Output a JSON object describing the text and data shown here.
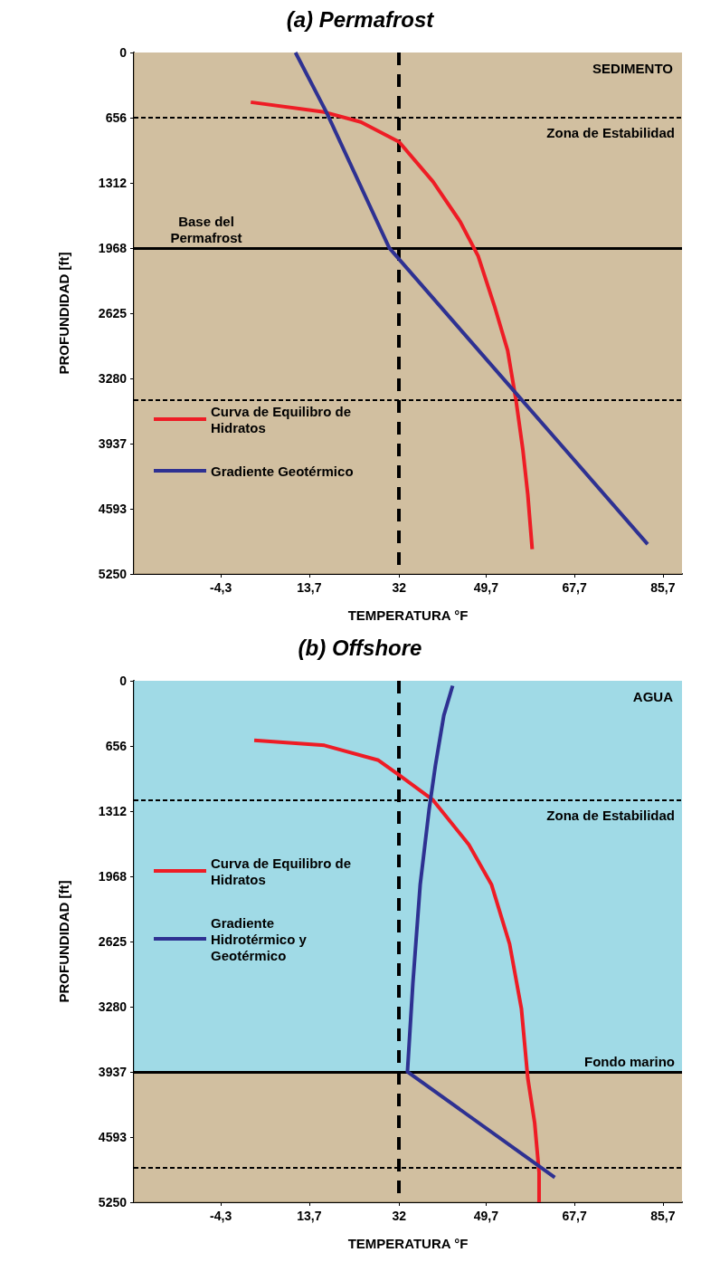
{
  "chart_data": [
    {
      "type": "line",
      "title": "(a) Permafrost",
      "xlabel": "TEMPERATURA °F",
      "ylabel": "PROFUNDIDAD [ft]",
      "xlim": [
        -22,
        89.6
      ],
      "ylim": [
        5250,
        0
      ],
      "xticks": [
        {
          "value": -4.3,
          "label": "-4,3"
        },
        {
          "value": 13.7,
          "label": "13,7"
        },
        32,
        {
          "value": 49.7,
          "label": "49,7"
        },
        {
          "value": 67.7,
          "label": "67,7"
        },
        {
          "value": 85.7,
          "label": "85,7"
        }
      ],
      "yticks": [
        0,
        656,
        1312,
        1968,
        2625,
        3280,
        3937,
        4593,
        5250
      ],
      "legend": "left",
      "tick_labels": "xy",
      "series": [
        {
          "name": "Curva de Equilibro de Hidratos",
          "color": "#ee1c25",
          "x": [
            1.8,
            16.8,
            24.2,
            32,
            38.9,
            44.4,
            48.1,
            51.4,
            54.1,
            55.8,
            57.2,
            58.2,
            59.1
          ],
          "values": [
            500,
            600,
            700,
            900,
            1300,
            1700,
            2050,
            2550,
            3000,
            3500,
            4000,
            4450,
            5000
          ]
        },
        {
          "name": "Gradiente Geotérmico",
          "color": "#2e3192",
          "x": [
            10.9,
            17.2,
            30.0,
            82.6
          ],
          "values": [
            0,
            600,
            1968,
            4950
          ]
        }
      ],
      "ref_lines": [
        {
          "axis": "y",
          "value": 1968,
          "label": "Base del Permafrost",
          "color": "#000000",
          "line_style": "solid"
        },
        {
          "axis": "x",
          "value": 32,
          "color": "#000000",
          "line_style": "dashed"
        },
        {
          "axis": "y",
          "value": 656,
          "label": "Zona de Estabilidad",
          "color": "#000000",
          "line_style": "dotted"
        },
        {
          "axis": "y",
          "value": 3500,
          "color": "#000000",
          "line_style": "dotted"
        }
      ],
      "bands": [
        {
          "axis": "y",
          "from": 0,
          "to": 5250,
          "label": "SEDIMENTO",
          "color": "#c9b48f"
        }
      ]
    },
    {
      "type": "line",
      "title": "(b) Offshore",
      "xlabel": "TEMPERATURA °F",
      "ylabel": "PROFUNDIDAD [ft]",
      "xlim": [
        -22,
        89.6
      ],
      "ylim": [
        5250,
        0
      ],
      "xticks": [
        {
          "value": -4.3,
          "label": "-4,3"
        },
        {
          "value": 13.7,
          "label": "13,7"
        },
        32,
        {
          "value": 49.7,
          "label": "49,7"
        },
        {
          "value": 67.7,
          "label": "67,7"
        },
        {
          "value": 85.7,
          "label": "85,7"
        }
      ],
      "yticks": [
        0,
        656,
        1312,
        1968,
        2625,
        3280,
        3937,
        4593,
        5250
      ],
      "legend": "left",
      "series": [
        {
          "name": "Curva de Equilibro de Hidratos",
          "color": "#ee1c25",
          "x": [
            2.5,
            16.8,
            27.8,
            32,
            38.9,
            46.2,
            50.8,
            54.5,
            56.9,
            58.2,
            59.6,
            60.5,
            60.5
          ],
          "values": [
            600,
            650,
            800,
            950,
            1200,
            1650,
            2050,
            2650,
            3300,
            4000,
            4450,
            4950,
            5250
          ]
        },
        {
          "name": "Gradiente Hidrotérmico y Geotérmico",
          "color": "#2e3192",
          "x": [
            42.9,
            41.1,
            39.4,
            38.1,
            36.3,
            34.8,
            33.7,
            63.7
          ],
          "values": [
            50,
            350,
            850,
            1300,
            2050,
            3050,
            3937,
            5000
          ]
        }
      ],
      "ref_lines": [
        {
          "axis": "y",
          "value": 3937,
          "label": "Fondo marino",
          "color": "#000000",
          "line_style": "solid"
        },
        {
          "axis": "x",
          "value": 32,
          "color": "#000000",
          "line_style": "dashed"
        },
        {
          "axis": "y",
          "value": 1200,
          "label": "Zona de Estabilidad",
          "color": "#000000",
          "line_style": "dotted"
        },
        {
          "axis": "y",
          "value": 4900,
          "color": "#000000",
          "line_style": "dotted"
        }
      ],
      "bands": [
        {
          "axis": "y",
          "from": 0,
          "to": 3937,
          "label": "AGUA",
          "color": "#8fd3e2"
        },
        {
          "axis": "y",
          "from": 3937,
          "to": 5250,
          "color": "#c9b48f"
        }
      ]
    }
  ]
}
